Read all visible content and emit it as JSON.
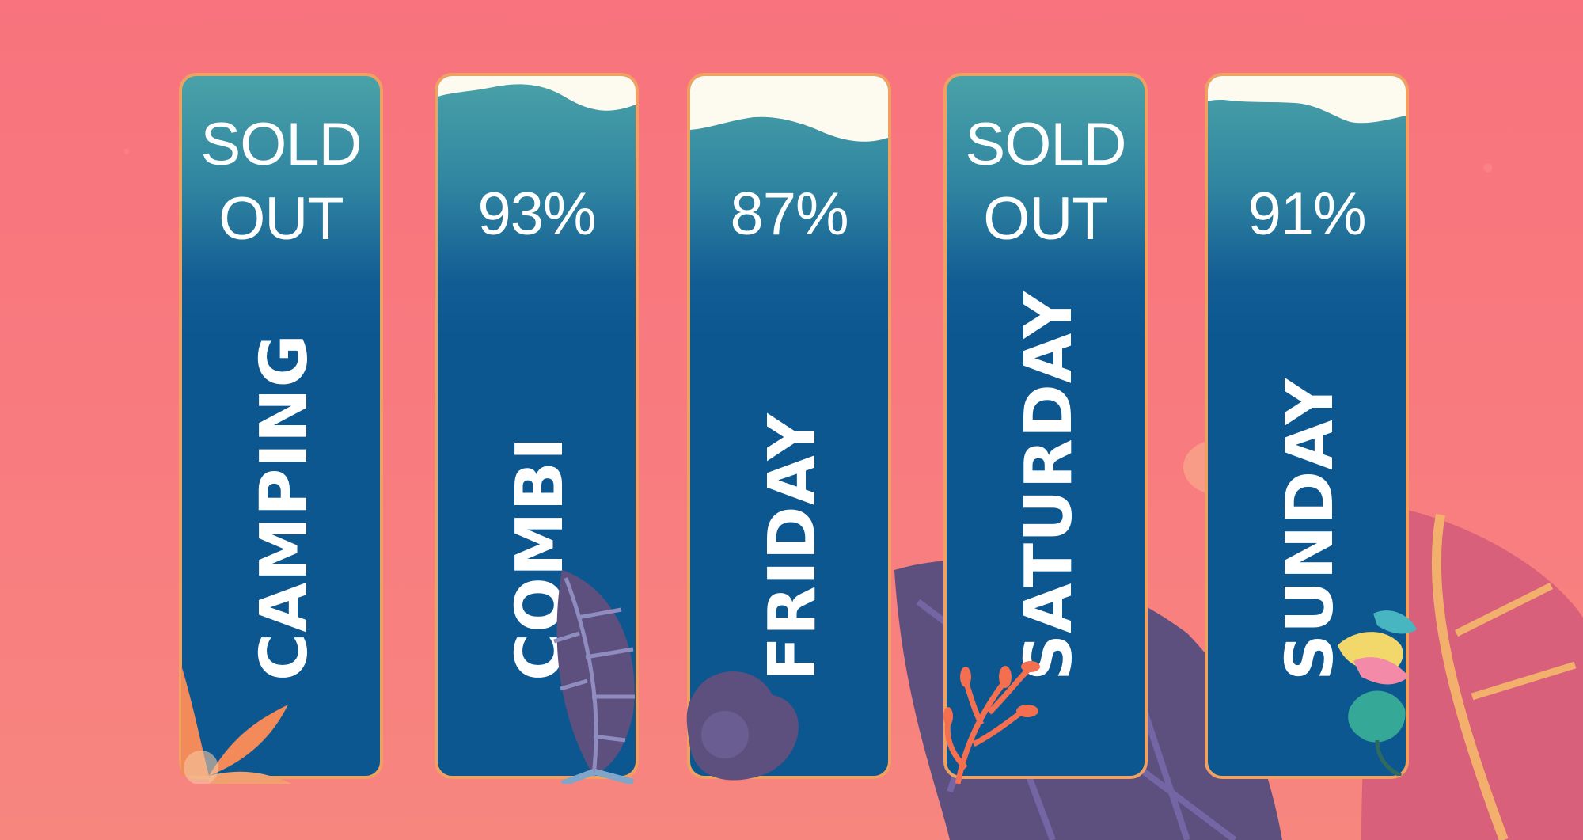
{
  "tickets": [
    {
      "name": "CAMPING",
      "status": "SOLD\nOUT",
      "sold_out": true,
      "sold_fraction": 1.0
    },
    {
      "name": "COMBI",
      "status": "93%",
      "sold_out": false,
      "sold_fraction": 0.93
    },
    {
      "name": "FRIDAY",
      "status": "87%",
      "sold_out": false,
      "sold_fraction": 0.87
    },
    {
      "name": "SATURDAY",
      "status": "SOLD\nOUT",
      "sold_out": true,
      "sold_fraction": 1.0
    },
    {
      "name": "SUNDAY",
      "status": "91%",
      "sold_out": false,
      "sold_fraction": 0.91
    }
  ],
  "colors": {
    "background": "#f8757e",
    "ticket_fill": "#0d5791",
    "ticket_top": "#4aa2a8",
    "ticket_border": "#f0a060",
    "empty_space": "#fdfaf0",
    "text": "#ffffff"
  },
  "decorations": [
    "leaf-icon",
    "leaf-icon",
    "blob-icon",
    "coral-icon",
    "flower-icon"
  ]
}
